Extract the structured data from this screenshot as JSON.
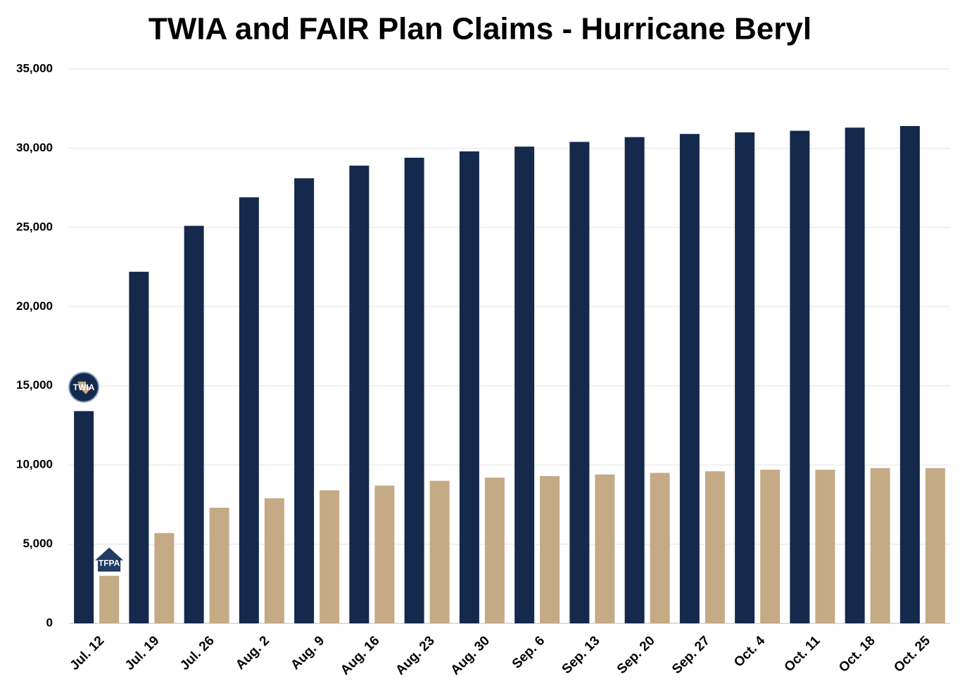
{
  "chart_data": {
    "type": "bar",
    "title": "TWIA and FAIR Plan Claims - Hurricane Beryl",
    "categories": [
      "Jul. 12",
      "Jul. 19",
      "Jul. 26",
      "Aug. 2",
      "Aug. 9",
      "Aug. 16",
      "Aug. 23",
      "Aug. 30",
      "Sep. 6",
      "Sep. 13",
      "Sep. 20",
      "Sep. 27",
      "Oct. 4",
      "Oct. 11",
      "Oct. 18",
      "Oct. 25"
    ],
    "series": [
      {
        "name": "TWIA",
        "color": "#14294b",
        "values": [
          13400,
          22200,
          25100,
          26900,
          28100,
          28900,
          29400,
          29800,
          30100,
          30400,
          30700,
          30900,
          31000,
          31100,
          31300,
          31400
        ]
      },
      {
        "name": "TFPA",
        "color": "#c4aa85",
        "values": [
          3000,
          5700,
          7300,
          7900,
          8400,
          8700,
          9000,
          9200,
          9300,
          9400,
          9500,
          9600,
          9700,
          9700,
          9800,
          9800
        ]
      }
    ],
    "ylim": [
      0,
      35000
    ],
    "yticks": [
      0,
      {
        "value": 5000,
        "label": "5,000"
      },
      {
        "value": 10000,
        "label": "10,000"
      },
      {
        "value": 15000,
        "label": "15,000"
      },
      {
        "value": 20000,
        "label": "20,000"
      },
      {
        "value": 25000,
        "label": "25,000"
      },
      {
        "value": 30000,
        "label": "30,000"
      },
      {
        "value": 35000,
        "label": "35,000"
      }
    ],
    "grid": true
  }
}
